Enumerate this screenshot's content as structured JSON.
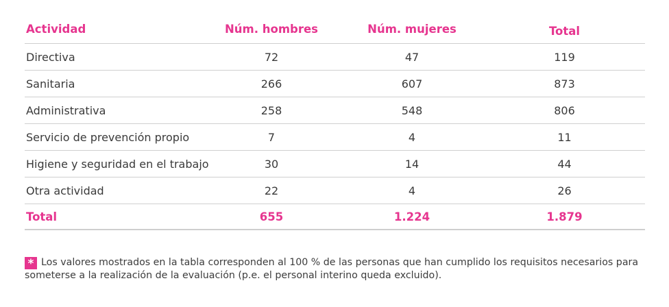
{
  "table": {
    "headers": [
      "Actividad",
      "Núm. hombres",
      "Núm. mujeres",
      "Total"
    ],
    "rows": [
      {
        "actividad": "Directiva",
        "hombres": "72",
        "mujeres": "47",
        "total": "119"
      },
      {
        "actividad": "Sanitaria",
        "hombres": "266",
        "mujeres": "607",
        "total": "873"
      },
      {
        "actividad": "Administrativa",
        "hombres": "258",
        "mujeres": "548",
        "total": "806"
      },
      {
        "actividad": "Servicio de prevención propio",
        "hombres": "7",
        "mujeres": "4",
        "total": "11"
      },
      {
        "actividad": "Higiene y seguridad en el trabajo",
        "hombres": "30",
        "mujeres": "14",
        "total": "44"
      },
      {
        "actividad": "Otra actividad",
        "hombres": "22",
        "mujeres": "4",
        "total": "26"
      }
    ],
    "total_row": {
      "actividad": "Total",
      "hombres": "655",
      "mujeres": "1.224",
      "total": "1.879"
    }
  },
  "footnote": {
    "icon": "asterisk-icon",
    "symbol": "*",
    "text": "Los valores mostrados en la tabla corresponden al 100 % de las personas que han cumplido los requisitos necesarios para someterse a la realización de la evaluación (p.e. el personal interino queda excluido)."
  },
  "colors": {
    "accent": "#e6358f",
    "text": "#3a3a3a",
    "rule": "#cfcfcf"
  }
}
